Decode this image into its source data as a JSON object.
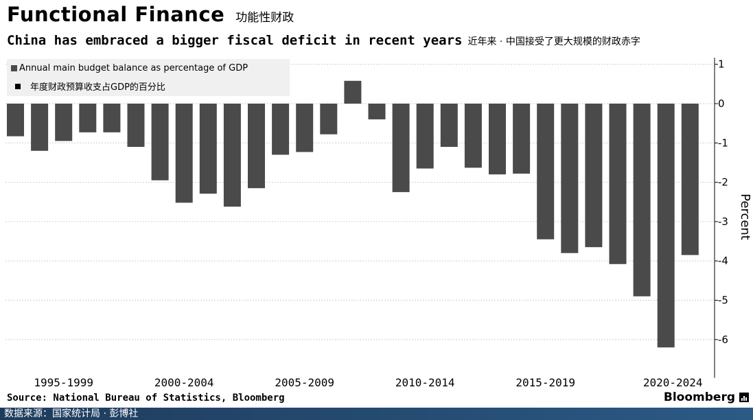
{
  "header": {
    "title": "Functional Finance",
    "title_cn": "功能性财政",
    "subtitle": "China has embraced a bigger fiscal deficit in recent years",
    "subtitle_cn": "近年来 · 中国接受了更大规模的财政赤字"
  },
  "legend": {
    "en": "Annual main budget balance as percentage of GDP",
    "cn": "年度财政预算收支占GDP的百分比"
  },
  "footer": {
    "source": "Source: National Bureau of Statistics, Bloomberg",
    "brand": "Bloomberg",
    "source_cn": "数据来源：国家统计局 · 彭博社"
  },
  "colors": {
    "bar": "#4a4a4a",
    "grid": "#cfcfcf",
    "footer_bar": "#1f3b5c"
  },
  "chart_data": {
    "type": "bar",
    "categories": [
      "1995",
      "1996",
      "1997",
      "1998",
      "1999",
      "2000",
      "2001",
      "2002",
      "2003",
      "2004",
      "2005",
      "2006",
      "2007",
      "2008",
      "2009",
      "2010",
      "2011",
      "2012",
      "2013",
      "2014",
      "2015",
      "2016",
      "2017",
      "2018",
      "2019",
      "2020",
      "2021",
      "2022",
      "2023"
    ],
    "values": [
      -0.83,
      -1.2,
      -0.95,
      -0.73,
      -0.73,
      -1.1,
      -1.95,
      -2.52,
      -2.29,
      -2.62,
      -2.15,
      -1.3,
      -1.23,
      -0.78,
      0.58,
      -0.4,
      -2.25,
      -1.65,
      -1.1,
      -1.63,
      -1.8,
      -1.78,
      -3.45,
      -3.8,
      -3.65,
      -4.08,
      -4.9,
      -6.2,
      -3.85
    ],
    "xtick_labels": [
      "1995-1999",
      "2000-2004",
      "2005-2009",
      "2010-2014",
      "2015-2019",
      "2020-2024"
    ],
    "ylabel": "Percent",
    "yticks": [
      "1",
      "0",
      "-1",
      "-2",
      "-3",
      "-4",
      "-5",
      "-6"
    ],
    "ylim": [
      -6.8,
      1.1
    ],
    "grid": true,
    "legend_position": "top-left"
  }
}
